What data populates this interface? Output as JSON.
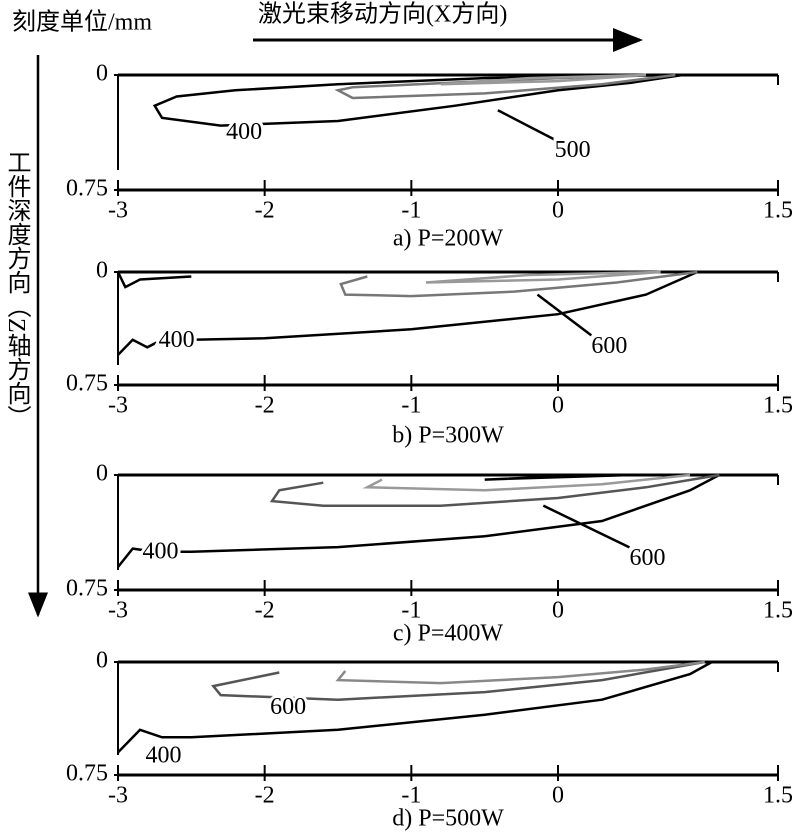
{
  "header": {
    "unit": "刻度单位/mm",
    "x_direction": "激光束移动方向(X方向)",
    "z_direction": "工件深度方向（Z轴方向）"
  },
  "chart_data": [
    {
      "type": "contour",
      "caption": "a) P=200W",
      "xlim": [
        -3,
        1.5
      ],
      "ylim": [
        0,
        0.75
      ],
      "y_inverted": true,
      "xticks": [
        -3,
        -2,
        -1,
        0,
        1.5
      ],
      "yticks": [
        0,
        0.75
      ],
      "contours": [
        {
          "level": 400,
          "color": "#000000",
          "x": [
            0.85,
            0.5,
            0,
            -0.7,
            -1.5,
            -2.3,
            -2.7,
            -2.75,
            -2.6,
            -2.2,
            -1.5,
            -0.5,
            0.85
          ],
          "y": [
            0,
            0.05,
            0.1,
            0.2,
            0.3,
            0.33,
            0.28,
            0.2,
            0.14,
            0.1,
            0.06,
            0.02,
            0
          ]
        },
        {
          "level": 500,
          "color": "#777777",
          "x": [
            0.8,
            0.3,
            -0.5,
            -1.4,
            -1.5,
            -1.4,
            -0.5,
            0.3
          ],
          "y": [
            0,
            0.06,
            0.12,
            0.15,
            0.1,
            0.08,
            0.04,
            0.01
          ]
        },
        {
          "color": "#999999",
          "x": [
            0.6,
            0,
            -0.8,
            -0.2,
            0.6
          ],
          "y": [
            0,
            0.04,
            0.06,
            0.02,
            0
          ]
        }
      ]
    },
    {
      "type": "contour",
      "caption": "b) P=300W",
      "xlim": [
        -3,
        1.5
      ],
      "ylim": [
        0,
        0.75
      ],
      "y_inverted": true,
      "xticks": [
        -3,
        -2,
        -1,
        0,
        1.5
      ],
      "yticks": [
        0,
        0.75
      ],
      "contours": [
        {
          "level": 400,
          "color": "#000000",
          "x": [
            -3,
            -2.9,
            -2.8,
            -2.7,
            -2.5,
            -2,
            -1,
            0,
            0.6,
            0.95
          ],
          "y": [
            0.55,
            0.45,
            0.5,
            0.45,
            0.45,
            0.44,
            0.38,
            0.28,
            0.15,
            0
          ]
        },
        {
          "level": 600,
          "color": "#777777",
          "x": [
            -1.3,
            -1.48,
            -1.45,
            -1,
            -0.3,
            0.4,
            0.95
          ],
          "y": [
            0.03,
            0.08,
            0.15,
            0.16,
            0.13,
            0.07,
            0
          ]
        },
        {
          "color": "#000000",
          "x": [
            -3,
            -2.95,
            -2.85,
            -2.5
          ],
          "y": [
            0,
            0.1,
            0.05,
            0.03
          ]
        },
        {
          "color": "#999999",
          "x": [
            0.7,
            0,
            -0.9,
            -0.2,
            0.7
          ],
          "y": [
            0,
            0.05,
            0.07,
            0.02,
            0
          ]
        }
      ]
    },
    {
      "type": "contour",
      "caption": "c) P=400W",
      "xlim": [
        -3,
        1.5
      ],
      "ylim": [
        0,
        0.75
      ],
      "y_inverted": true,
      "xticks": [
        -3,
        -2,
        -1,
        0,
        1.5
      ],
      "yticks": [
        0,
        0.75
      ],
      "contours": [
        {
          "level": 400,
          "color": "#000000",
          "x": [
            -3,
            -2.9,
            -2.75,
            -2.5,
            -1.5,
            -0.5,
            0.3,
            0.9,
            1.1
          ],
          "y": [
            0.6,
            0.48,
            0.5,
            0.5,
            0.47,
            0.4,
            0.3,
            0.1,
            0
          ]
        },
        {
          "level": 600,
          "color": "#555555",
          "x": [
            -1.6,
            -1.9,
            -1.95,
            -1.6,
            -0.8,
            0,
            0.6,
            1.1
          ],
          "y": [
            0.05,
            0.1,
            0.17,
            0.2,
            0.2,
            0.15,
            0.08,
            0
          ]
        },
        {
          "color": "#999999",
          "x": [
            -1.2,
            -1.3,
            -0.5,
            0.3,
            0.9
          ],
          "y": [
            0.03,
            0.08,
            0.1,
            0.06,
            0
          ]
        },
        {
          "color": "#000000",
          "x": [
            0.5,
            -0.2,
            -0.5,
            0,
            0.5
          ],
          "y": [
            0,
            0.02,
            0.03,
            0.01,
            0
          ]
        }
      ]
    },
    {
      "type": "contour",
      "caption": "d) P=500W",
      "xlim": [
        -3,
        1.5
      ],
      "ylim": [
        0,
        0.75
      ],
      "y_inverted": true,
      "xticks": [
        -3,
        -2,
        -1,
        0,
        1.5
      ],
      "yticks": [
        0,
        0.75
      ],
      "contours": [
        {
          "level": 400,
          "color": "#000000",
          "x": [
            -3,
            -2.85,
            -2.7,
            -2.5,
            -1.5,
            -0.5,
            0.3,
            0.9,
            1.05
          ],
          "y": [
            0.6,
            0.45,
            0.5,
            0.5,
            0.45,
            0.35,
            0.25,
            0.08,
            0
          ]
        },
        {
          "level": 600,
          "color": "#555555",
          "x": [
            -1.9,
            -2.35,
            -2.3,
            -1.5,
            -0.5,
            0.3,
            1
          ],
          "y": [
            0.07,
            0.16,
            0.22,
            0.25,
            0.2,
            0.12,
            0
          ]
        },
        {
          "color": "#888888",
          "x": [
            -1.45,
            -1.5,
            -0.8,
            0,
            0.6,
            1
          ],
          "y": [
            0.06,
            0.12,
            0.14,
            0.1,
            0.05,
            0
          ]
        }
      ]
    }
  ]
}
